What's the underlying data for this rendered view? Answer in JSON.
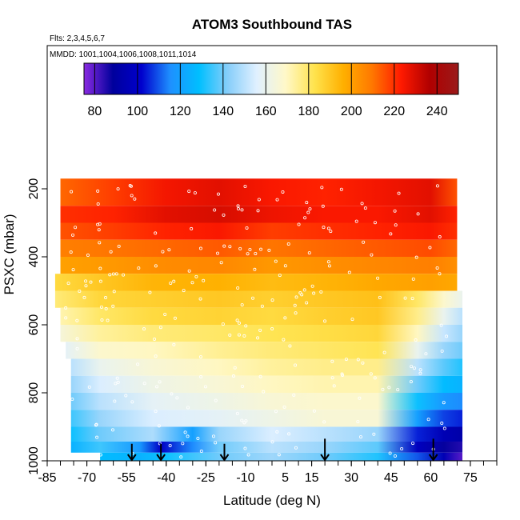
{
  "chart_data": {
    "type": "heatmap",
    "title": "ATOM3 Southbound TAS",
    "subtitle_flights": "Flts: 2,3,4,5,6,7",
    "subtitle_dates": "MMDD: 1001,1004,1006,1008,1011,1014",
    "xlabel": "Latitude (deg N)",
    "ylabel": "PSXC (mbar)",
    "xlim": [
      -85,
      85
    ],
    "ylim": [
      1000,
      0
    ],
    "x_ticks": [
      -85,
      -70,
      -55,
      -40,
      -25,
      -10,
      5,
      15,
      30,
      45,
      60,
      75
    ],
    "x_tick_labels": [
      "-85",
      "-70",
      "-55",
      "-40",
      "-25",
      "-10",
      "5",
      "15",
      "30",
      "45",
      "60",
      "75"
    ],
    "y_ticks": [
      200,
      400,
      600,
      800,
      1000
    ],
    "y_tick_labels": [
      "200",
      "400",
      "600",
      "800",
      "1000"
    ],
    "colorbar": {
      "min": 75,
      "max": 250,
      "tick_values": [
        80,
        100,
        120,
        140,
        160,
        180,
        200,
        220,
        240
      ],
      "tick_labels": [
        "80",
        "100",
        "120",
        "140",
        "160",
        "180",
        "200",
        "220",
        "240"
      ],
      "colors": [
        "#8a2be2",
        "#00009c",
        "#0000cd",
        "#1e90ff",
        "#00bfff",
        "#87cefa",
        "#e0f0ff",
        "#fff8c8",
        "#ffe34d",
        "#ffb000",
        "#ff7800",
        "#ff1a00",
        "#b00000",
        "#9a1a1a"
      ]
    },
    "pressure_levels": [
      200,
      250,
      300,
      350,
      400,
      450,
      500,
      550,
      600,
      650,
      700,
      750,
      800,
      850,
      900,
      950,
      1000
    ],
    "layers": [
      {
        "pressure": 225,
        "lat_range": [
          -80,
          70
        ],
        "profile": [
          [
            -80,
            212
          ],
          [
            -60,
            218
          ],
          [
            -40,
            225
          ],
          [
            -20,
            228
          ],
          [
            0,
            224
          ],
          [
            20,
            222
          ],
          [
            40,
            225
          ],
          [
            60,
            228
          ],
          [
            70,
            215
          ]
        ]
      },
      {
        "pressure": 275,
        "lat_range": [
          -80,
          70
        ],
        "profile": [
          [
            -80,
            220
          ],
          [
            -60,
            222
          ],
          [
            -40,
            228
          ],
          [
            -20,
            230
          ],
          [
            0,
            226
          ],
          [
            20,
            224
          ],
          [
            40,
            224
          ],
          [
            60,
            228
          ],
          [
            70,
            222
          ]
        ]
      },
      {
        "pressure": 325,
        "lat_range": [
          -80,
          70
        ],
        "profile": [
          [
            -80,
            215
          ],
          [
            -60,
            218
          ],
          [
            -40,
            222
          ],
          [
            -20,
            224
          ],
          [
            0,
            218
          ],
          [
            20,
            220
          ],
          [
            40,
            222
          ],
          [
            60,
            224
          ],
          [
            70,
            220
          ]
        ]
      },
      {
        "pressure": 375,
        "lat_range": [
          -80,
          70
        ],
        "profile": [
          [
            -80,
            208
          ],
          [
            -60,
            210
          ],
          [
            -40,
            212
          ],
          [
            -20,
            214
          ],
          [
            0,
            210
          ],
          [
            20,
            212
          ],
          [
            40,
            214
          ],
          [
            60,
            216
          ],
          [
            70,
            212
          ]
        ]
      },
      {
        "pressure": 425,
        "lat_range": [
          -80,
          70
        ],
        "profile": [
          [
            -80,
            200
          ],
          [
            -60,
            202
          ],
          [
            -40,
            205
          ],
          [
            -20,
            206
          ],
          [
            0,
            202
          ],
          [
            20,
            204
          ],
          [
            40,
            206
          ],
          [
            60,
            208
          ],
          [
            70,
            204
          ]
        ]
      },
      {
        "pressure": 475,
        "lat_range": [
          -82,
          70
        ],
        "profile": [
          [
            -82,
            185
          ],
          [
            -65,
            190
          ],
          [
            -45,
            195
          ],
          [
            -20,
            196
          ],
          [
            0,
            193
          ],
          [
            20,
            195
          ],
          [
            40,
            198
          ],
          [
            60,
            200
          ],
          [
            70,
            198
          ]
        ]
      },
      {
        "pressure": 525,
        "lat_range": [
          -82,
          72
        ],
        "profile": [
          [
            -82,
            178
          ],
          [
            -65,
            186
          ],
          [
            -45,
            188
          ],
          [
            -20,
            190
          ],
          [
            0,
            188
          ],
          [
            20,
            190
          ],
          [
            40,
            192
          ],
          [
            55,
            180
          ],
          [
            65,
            168
          ],
          [
            72,
            160
          ]
        ]
      },
      {
        "pressure": 575,
        "lat_range": [
          -80,
          72
        ],
        "profile": [
          [
            -80,
            172
          ],
          [
            -65,
            180
          ],
          [
            -45,
            185
          ],
          [
            -20,
            187
          ],
          [
            0,
            185
          ],
          [
            20,
            188
          ],
          [
            40,
            190
          ],
          [
            55,
            176
          ],
          [
            65,
            160
          ],
          [
            72,
            150
          ]
        ]
      },
      {
        "pressure": 625,
        "lat_range": [
          -80,
          72
        ],
        "profile": [
          [
            -80,
            165
          ],
          [
            -65,
            174
          ],
          [
            -45,
            178
          ],
          [
            -20,
            180
          ],
          [
            0,
            182
          ],
          [
            20,
            184
          ],
          [
            40,
            186
          ],
          [
            55,
            170
          ],
          [
            65,
            152
          ],
          [
            72,
            145
          ]
        ]
      },
      {
        "pressure": 675,
        "lat_range": [
          -78,
          72
        ],
        "profile": [
          [
            -78,
            158
          ],
          [
            -65,
            168
          ],
          [
            -45,
            170
          ],
          [
            -20,
            175
          ],
          [
            0,
            178
          ],
          [
            20,
            180
          ],
          [
            40,
            182
          ],
          [
            55,
            160
          ],
          [
            65,
            145
          ],
          [
            72,
            140
          ]
        ]
      },
      {
        "pressure": 725,
        "lat_range": [
          -76,
          72
        ],
        "profile": [
          [
            -76,
            150
          ],
          [
            -65,
            160
          ],
          [
            -45,
            166
          ],
          [
            -20,
            170
          ],
          [
            0,
            174
          ],
          [
            20,
            176
          ],
          [
            40,
            176
          ],
          [
            55,
            150
          ],
          [
            65,
            138
          ],
          [
            72,
            132
          ]
        ]
      },
      {
        "pressure": 775,
        "lat_range": [
          -76,
          72
        ],
        "profile": [
          [
            -76,
            145
          ],
          [
            -65,
            155
          ],
          [
            -45,
            162
          ],
          [
            -20,
            166
          ],
          [
            0,
            170
          ],
          [
            20,
            172
          ],
          [
            40,
            172
          ],
          [
            55,
            140
          ],
          [
            65,
            128
          ],
          [
            72,
            125
          ]
        ]
      },
      {
        "pressure": 825,
        "lat_range": [
          -76,
          72
        ],
        "profile": [
          [
            -76,
            140
          ],
          [
            -65,
            150
          ],
          [
            -45,
            158
          ],
          [
            -20,
            162
          ],
          [
            0,
            166
          ],
          [
            20,
            168
          ],
          [
            40,
            168
          ],
          [
            55,
            130
          ],
          [
            65,
            118
          ],
          [
            72,
            115
          ]
        ]
      },
      {
        "pressure": 875,
        "lat_range": [
          -76,
          72
        ],
        "profile": [
          [
            -76,
            135
          ],
          [
            -65,
            145
          ],
          [
            -45,
            155
          ],
          [
            -20,
            158
          ],
          [
            0,
            162
          ],
          [
            20,
            166
          ],
          [
            40,
            166
          ],
          [
            55,
            120
          ],
          [
            65,
            108
          ],
          [
            72,
            105
          ]
        ]
      },
      {
        "pressure": 925,
        "lat_range": [
          -76,
          72
        ],
        "profile": [
          [
            -76,
            130
          ],
          [
            -65,
            140
          ],
          [
            -45,
            148
          ],
          [
            -30,
            120
          ],
          [
            -20,
            145
          ],
          [
            0,
            155
          ],
          [
            20,
            150
          ],
          [
            40,
            145
          ],
          [
            55,
            105
          ],
          [
            65,
            95
          ],
          [
            72,
            92
          ]
        ]
      },
      {
        "pressure": 962,
        "lat_range": [
          -76,
          72
        ],
        "profile": [
          [
            -76,
            125
          ],
          [
            -65,
            135
          ],
          [
            -50,
            118
          ],
          [
            -42,
            100
          ],
          [
            -30,
            115
          ],
          [
            -20,
            140
          ],
          [
            0,
            150
          ],
          [
            20,
            145
          ],
          [
            40,
            138
          ],
          [
            55,
            98
          ],
          [
            65,
            88
          ],
          [
            72,
            85
          ]
        ]
      },
      {
        "pressure": 990,
        "lat_range": [
          -65,
          72
        ],
        "profile": [
          [
            -65,
            128
          ],
          [
            -50,
            125
          ],
          [
            -40,
            130
          ],
          [
            -20,
            140
          ],
          [
            0,
            146
          ],
          [
            20,
            140
          ],
          [
            40,
            132
          ],
          [
            55,
            110
          ],
          [
            65,
            95
          ],
          [
            72,
            80
          ]
        ]
      }
    ],
    "arrows_lat": [
      -53,
      -42,
      -18,
      20,
      61
    ],
    "arrows_top_mbar": [
      [
        -53,
        950
      ],
      [
        -42,
        950
      ],
      [
        -18,
        950
      ],
      [
        20,
        935
      ],
      [
        61,
        935
      ]
    ]
  }
}
